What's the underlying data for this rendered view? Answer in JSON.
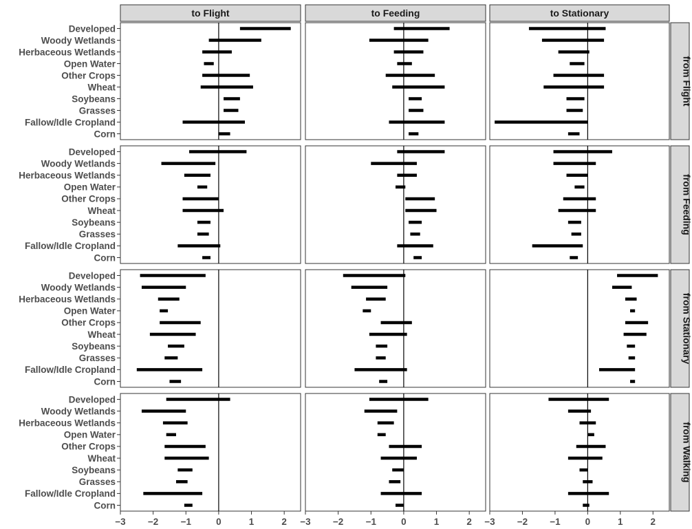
{
  "chart_data": {
    "type": "interval",
    "columns": [
      "to Flight",
      "to Feeding",
      "to Stationary"
    ],
    "rows": [
      "from Flight",
      "from Feeding",
      "from Stationary",
      "from Walking"
    ],
    "categories": [
      "Developed",
      "Woody Wetlands",
      "Herbaceous Wetlands",
      "Open Water",
      "Other Crops",
      "Wheat",
      "Soybeans",
      "Grasses",
      "Fallow/Idle Cropland",
      "Corn"
    ],
    "xlim": [
      -3,
      2.5
    ],
    "xticks": [
      "−3",
      "−2",
      "−1",
      "0",
      "1",
      "2"
    ],
    "xtick_values": [
      -3,
      -2,
      -1,
      0,
      1,
      2
    ],
    "reference_line": 0,
    "panels": [
      [
        [
          [
            0.65,
            2.2
          ],
          [
            -0.3,
            1.3
          ],
          [
            -0.5,
            0.4
          ],
          [
            -0.45,
            -0.15
          ],
          [
            -0.5,
            0.95
          ],
          [
            -0.55,
            1.05
          ],
          [
            0.15,
            0.65
          ],
          [
            0.15,
            0.6
          ],
          [
            -1.1,
            0.8
          ],
          [
            0.0,
            0.35
          ]
        ],
        [
          [
            -0.3,
            1.4
          ],
          [
            -1.05,
            0.75
          ],
          [
            -0.3,
            0.6
          ],
          [
            -0.2,
            0.25
          ],
          [
            -0.55,
            0.95
          ],
          [
            -0.35,
            1.25
          ],
          [
            0.15,
            0.55
          ],
          [
            0.15,
            0.6
          ],
          [
            -0.45,
            1.25
          ],
          [
            0.15,
            0.45
          ]
        ],
        [
          [
            -1.8,
            0.55
          ],
          [
            -1.4,
            0.5
          ],
          [
            -0.9,
            0.05
          ],
          [
            -0.55,
            -0.1
          ],
          [
            -1.05,
            0.5
          ],
          [
            -1.35,
            0.5
          ],
          [
            -0.65,
            -0.1
          ],
          [
            -0.65,
            -0.15
          ],
          [
            -2.85,
            0.0
          ],
          [
            -0.6,
            -0.25
          ]
        ]
      ],
      [
        [
          [
            -0.9,
            0.85
          ],
          [
            -1.75,
            -0.1
          ],
          [
            -1.05,
            -0.25
          ],
          [
            -0.65,
            -0.35
          ],
          [
            -1.1,
            0.0
          ],
          [
            -1.1,
            0.15
          ],
          [
            -0.65,
            -0.25
          ],
          [
            -0.65,
            -0.3
          ],
          [
            -1.25,
            0.05
          ],
          [
            -0.5,
            -0.25
          ]
        ],
        [
          [
            -0.2,
            1.25
          ],
          [
            -1.0,
            0.4
          ],
          [
            -0.2,
            0.4
          ],
          [
            -0.25,
            0.05
          ],
          [
            0.05,
            0.95
          ],
          [
            0.05,
            1.0
          ],
          [
            0.15,
            0.55
          ],
          [
            0.2,
            0.5
          ],
          [
            -0.2,
            0.9
          ],
          [
            0.3,
            0.55
          ]
        ],
        [
          [
            -1.05,
            0.75
          ],
          [
            -1.05,
            0.25
          ],
          [
            -0.65,
            0.0
          ],
          [
            -0.4,
            -0.1
          ],
          [
            -0.75,
            0.25
          ],
          [
            -0.9,
            0.25
          ],
          [
            -0.6,
            -0.2
          ],
          [
            -0.5,
            -0.2
          ],
          [
            -1.7,
            -0.15
          ],
          [
            -0.55,
            -0.3
          ]
        ]
      ],
      [
        [
          [
            -2.4,
            -0.4
          ],
          [
            -2.35,
            -1.0
          ],
          [
            -1.85,
            -1.2
          ],
          [
            -1.8,
            -1.55
          ],
          [
            -1.8,
            -0.55
          ],
          [
            -2.1,
            -0.7
          ],
          [
            -1.55,
            -1.05
          ],
          [
            -1.65,
            -1.25
          ],
          [
            -2.5,
            -0.5
          ],
          [
            -1.5,
            -1.15
          ]
        ],
        [
          [
            -1.85,
            0.05
          ],
          [
            -1.6,
            -0.5
          ],
          [
            -1.15,
            -0.55
          ],
          [
            -1.25,
            -1.0
          ],
          [
            -0.7,
            0.25
          ],
          [
            -1.05,
            0.1
          ],
          [
            -0.85,
            -0.5
          ],
          [
            -0.85,
            -0.55
          ],
          [
            -1.5,
            0.1
          ],
          [
            -0.75,
            -0.5
          ]
        ],
        [
          [
            0.9,
            2.15
          ],
          [
            0.75,
            1.35
          ],
          [
            1.15,
            1.5
          ],
          [
            1.3,
            1.45
          ],
          [
            1.15,
            1.85
          ],
          [
            1.1,
            1.8
          ],
          [
            1.2,
            1.45
          ],
          [
            1.25,
            1.45
          ],
          [
            0.35,
            1.45
          ],
          [
            1.3,
            1.45
          ]
        ]
      ],
      [
        [
          [
            -1.6,
            0.35
          ],
          [
            -2.35,
            -1.0
          ],
          [
            -1.7,
            -0.95
          ],
          [
            -1.6,
            -1.3
          ],
          [
            -1.65,
            -0.4
          ],
          [
            -1.65,
            -0.3
          ],
          [
            -1.25,
            -0.8
          ],
          [
            -1.3,
            -0.95
          ],
          [
            -2.3,
            -0.5
          ],
          [
            -1.05,
            -0.8
          ]
        ],
        [
          [
            -1.05,
            0.75
          ],
          [
            -1.2,
            -0.2
          ],
          [
            -0.8,
            -0.3
          ],
          [
            -0.8,
            -0.55
          ],
          [
            -0.45,
            0.55
          ],
          [
            -0.7,
            0.4
          ],
          [
            -0.35,
            0.0
          ],
          [
            -0.45,
            -0.1
          ],
          [
            -0.7,
            0.55
          ],
          [
            -0.25,
            0.0
          ]
        ],
        [
          [
            -1.2,
            0.65
          ],
          [
            -0.6,
            0.1
          ],
          [
            -0.25,
            0.25
          ],
          [
            0.0,
            0.2
          ],
          [
            -0.35,
            0.55
          ],
          [
            -0.6,
            0.45
          ],
          [
            -0.25,
            0.0
          ],
          [
            -0.15,
            0.15
          ],
          [
            -0.6,
            0.65
          ],
          [
            -0.15,
            0.05
          ]
        ]
      ]
    ]
  }
}
